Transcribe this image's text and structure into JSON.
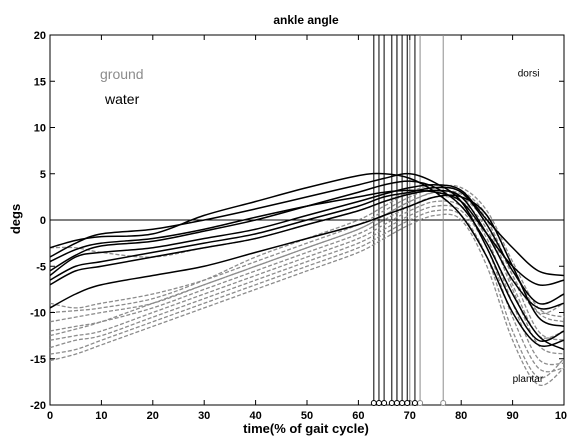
{
  "chart_data": {
    "type": "line",
    "title": "ankle angle",
    "xlabel": "time(% of gait cycle)",
    "ylabel": "degs",
    "xlim": [
      0,
      100
    ],
    "ylim": [
      -20,
      20
    ],
    "xticks": [
      0,
      10,
      20,
      30,
      40,
      50,
      60,
      70,
      80,
      90,
      100
    ],
    "yticks": [
      -20,
      -15,
      -10,
      -5,
      0,
      5,
      10,
      15,
      20
    ],
    "xtick_labels": [
      "0",
      "10",
      "20",
      "30",
      "40",
      "50",
      "60",
      "70",
      "80",
      "90",
      "100"
    ],
    "ytick_labels": [
      "-20",
      "-15",
      "-10",
      "-5",
      "0",
      "5",
      "10",
      "15",
      "20"
    ],
    "grid": false,
    "zero_line": 0,
    "legend": {
      "placement": "top-left",
      "entries": [
        {
          "label": "ground",
          "color": "#8c8c8c"
        },
        {
          "label": "water",
          "color": "#000000"
        }
      ]
    },
    "annotations": [
      {
        "text": "dorsi",
        "x": 91,
        "y": 15.5
      },
      {
        "text": "plantar",
        "x": 90,
        "y": -17.5
      }
    ],
    "colors": {
      "water": "#000000",
      "ground": "#8c8c8c"
    },
    "toe_off_markers": {
      "water": [
        63,
        64,
        65,
        66.5,
        67.5,
        68.5,
        69.5,
        71
      ],
      "ground": [
        67.5,
        70,
        72,
        76.5
      ]
    },
    "series": [
      {
        "group": "water",
        "x": [
          0,
          5,
          10,
          20,
          30,
          40,
          50,
          60,
          65,
          70,
          75,
          80,
          85,
          90,
          95,
          100
        ],
        "y": [
          -4.5,
          -3.2,
          -2.5,
          -2,
          -1,
          0.3,
          1.5,
          2.5,
          3,
          3.2,
          3,
          2,
          -1.5,
          -5,
          -7,
          -6.5
        ]
      },
      {
        "group": "water",
        "x": [
          0,
          5,
          10,
          20,
          30,
          40,
          50,
          60,
          65,
          70,
          75,
          80,
          85,
          90,
          95,
          100
        ],
        "y": [
          -6,
          -4,
          -3.5,
          -3,
          -2,
          -1,
          0.5,
          2,
          2.8,
          3.5,
          3.8,
          3.2,
          0,
          -3,
          -5.5,
          -6
        ]
      },
      {
        "group": "water",
        "x": [
          0,
          5,
          10,
          20,
          30,
          40,
          50,
          60,
          65,
          70,
          75,
          80,
          85,
          90,
          95,
          100
        ],
        "y": [
          -6.5,
          -5,
          -4.5,
          -3.5,
          -2.5,
          -1.5,
          0,
          1.5,
          2.5,
          3,
          3.5,
          3,
          -0.5,
          -5.5,
          -9,
          -8
        ]
      },
      {
        "group": "water",
        "x": [
          0,
          5,
          10,
          20,
          30,
          40,
          50,
          60,
          65,
          70,
          75,
          80,
          85,
          90,
          95,
          100
        ],
        "y": [
          -7,
          -5.5,
          -5,
          -4,
          -3,
          -2,
          -0.5,
          1,
          2,
          2.8,
          3.2,
          2.5,
          -1.5,
          -6.5,
          -9.5,
          -9
        ]
      },
      {
        "group": "water",
        "x": [
          0,
          5,
          10,
          20,
          30,
          40,
          50,
          60,
          65,
          70,
          75,
          80,
          85,
          90,
          95,
          100
        ],
        "y": [
          -9.5,
          -8,
          -7,
          -6,
          -5,
          -3.5,
          -2,
          -0.5,
          0.5,
          1.5,
          2.5,
          2.5,
          0.5,
          -5,
          -10.5,
          -11.5
        ]
      },
      {
        "group": "water",
        "x": [
          0,
          5,
          10,
          20,
          30,
          40,
          50,
          60,
          65,
          70,
          75,
          80,
          85,
          90,
          95,
          100
        ],
        "y": [
          -4,
          -2.5,
          -1.5,
          -1,
          0,
          1.2,
          2.5,
          3.8,
          4.5,
          5,
          4,
          2,
          -3,
          -9,
          -13,
          -12
        ]
      },
      {
        "group": "water",
        "x": [
          0,
          5,
          10,
          20,
          30,
          40,
          50,
          60,
          65,
          70,
          75,
          80,
          85,
          90,
          95,
          100
        ],
        "y": [
          -5.5,
          -3.8,
          -2.8,
          -2.3,
          -1.2,
          0,
          1.5,
          3,
          3.8,
          4.2,
          3.5,
          1.5,
          -2.5,
          -8,
          -12.5,
          -14
        ]
      },
      {
        "group": "water",
        "x": [
          0,
          5,
          10,
          20,
          30,
          40,
          50,
          60,
          65,
          70,
          75,
          80,
          85,
          90,
          95,
          100
        ],
        "y": [
          -3,
          -2.2,
          -1.8,
          -1.5,
          0.5,
          2,
          3.5,
          4.8,
          5,
          4.5,
          3,
          0.5,
          -4,
          -10,
          -13.5,
          -13
        ]
      },
      {
        "group": "ground",
        "x": [
          0,
          5,
          10,
          20,
          30,
          40,
          50,
          60,
          65,
          70,
          75,
          80,
          85,
          90,
          95,
          100
        ],
        "y": [
          -3,
          -3,
          -3.5,
          -4,
          -3,
          -2,
          -0.5,
          1,
          2,
          3,
          3.5,
          3,
          0,
          -6,
          -10,
          -9
        ]
      },
      {
        "group": "ground",
        "x": [
          0,
          5,
          10,
          20,
          30,
          40,
          50,
          60,
          65,
          70,
          75,
          80,
          85,
          90,
          95,
          100
        ],
        "y": [
          -9,
          -9.5,
          -9,
          -8,
          -6.5,
          -4.5,
          -2.5,
          -0.5,
          1,
          2.5,
          3.5,
          3.5,
          1,
          -4.5,
          -9.5,
          -10.5
        ]
      },
      {
        "group": "ground",
        "x": [
          0,
          5,
          10,
          20,
          30,
          40,
          50,
          60,
          65,
          70,
          75,
          80,
          85,
          90,
          95,
          100
        ],
        "y": [
          -11,
          -10.5,
          -10,
          -9,
          -7,
          -5,
          -3,
          -1,
          0.5,
          2,
          3,
          2.8,
          0,
          -6,
          -12,
          -13
        ]
      },
      {
        "group": "ground",
        "x": [
          0,
          5,
          10,
          20,
          30,
          40,
          50,
          60,
          65,
          70,
          75,
          80,
          85,
          90,
          95,
          100
        ],
        "y": [
          -12,
          -11.5,
          -11,
          -9.5,
          -7.5,
          -5.5,
          -3.5,
          -1.5,
          0,
          1.5,
          2.5,
          2,
          -1,
          -7.5,
          -13.5,
          -14.5
        ]
      },
      {
        "group": "ground",
        "x": [
          0,
          5,
          10,
          20,
          30,
          40,
          50,
          60,
          65,
          70,
          75,
          80,
          85,
          90,
          95,
          100
        ],
        "y": [
          -13,
          -12.5,
          -12,
          -10,
          -8,
          -6,
          -4,
          -2,
          -0.5,
          1,
          2,
          1.5,
          -2,
          -9,
          -15,
          -15.5
        ]
      },
      {
        "group": "ground",
        "x": [
          0,
          5,
          10,
          20,
          30,
          40,
          50,
          60,
          65,
          70,
          75,
          80,
          85,
          90,
          95,
          100
        ],
        "y": [
          -13.8,
          -13,
          -12.5,
          -10.5,
          -8.5,
          -6.5,
          -4.5,
          -2.5,
          -1,
          0.5,
          1.5,
          1,
          -3,
          -10.5,
          -16,
          -16
        ]
      },
      {
        "group": "ground",
        "x": [
          0,
          5,
          10,
          20,
          30,
          40,
          50,
          60,
          65,
          70,
          75,
          80,
          85,
          90,
          95,
          100
        ],
        "y": [
          -14.5,
          -14,
          -13,
          -11,
          -9,
          -7,
          -5,
          -3,
          -1.5,
          0,
          1,
          0.5,
          -4,
          -12,
          -17,
          -15
        ]
      },
      {
        "group": "ground",
        "x": [
          0,
          5,
          10,
          20,
          30,
          40,
          50,
          60,
          65,
          70,
          75,
          80,
          85,
          90,
          95,
          100
        ],
        "y": [
          -15.2,
          -14.5,
          -13.5,
          -11.5,
          -9.5,
          -7.5,
          -5.5,
          -3.5,
          -2,
          -0.5,
          0.5,
          0,
          -5,
          -13,
          -17.8,
          -16
        ]
      },
      {
        "group": "ground",
        "x": [
          0,
          5,
          10,
          20,
          30,
          40,
          50,
          60,
          65,
          70,
          75,
          80,
          85,
          90,
          95,
          100
        ],
        "y": [
          -12.5,
          -11.8,
          -11,
          -9,
          -7,
          -5,
          -3,
          -1,
          0.5,
          2,
          3,
          2.5,
          -0.5,
          -7,
          -12.5,
          -12
        ]
      },
      {
        "group": "ground",
        "x": [
          0,
          5,
          10,
          20,
          30,
          40,
          50,
          60,
          65,
          70,
          75,
          80,
          85,
          90,
          95,
          100
        ],
        "y": [
          -10,
          -9.8,
          -9.5,
          -8.5,
          -6.5,
          -4,
          -2,
          0,
          1.5,
          3,
          3.8,
          3.2,
          0.5,
          -5,
          -10,
          -11
        ]
      }
    ]
  }
}
